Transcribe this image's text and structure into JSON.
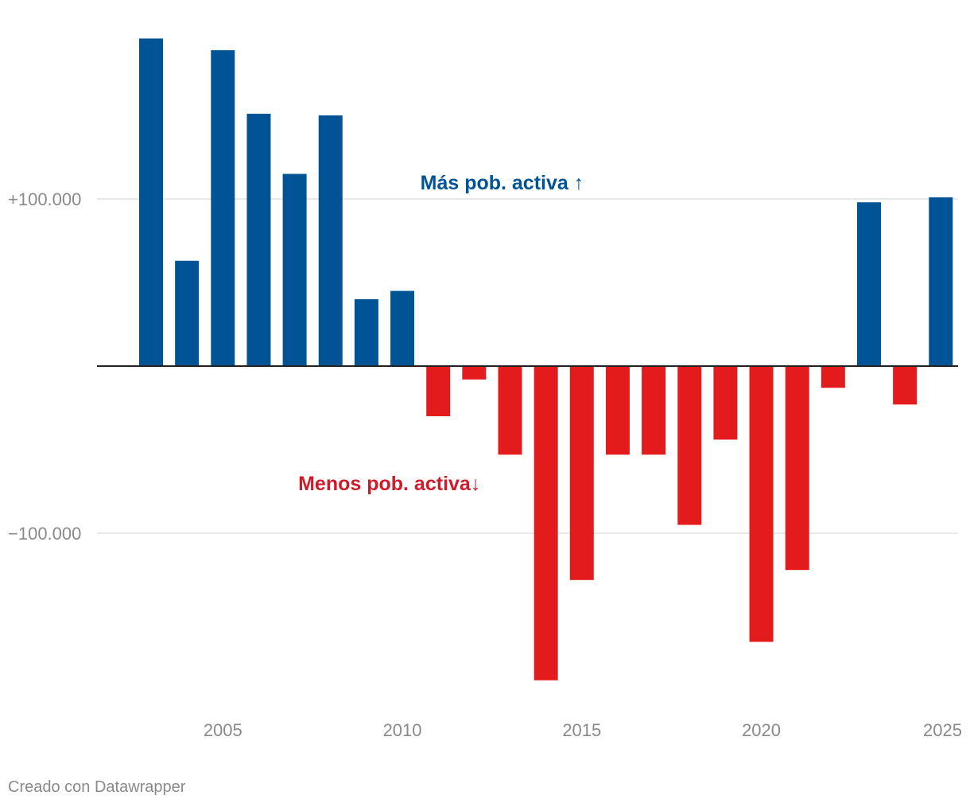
{
  "chart_data": {
    "type": "bar",
    "title": "",
    "xlabel": "",
    "ylabel": "",
    "x": [
      2003,
      2004,
      2005,
      2006,
      2007,
      2008,
      2009,
      2010,
      2011,
      2012,
      2013,
      2014,
      2015,
      2016,
      2017,
      2018,
      2019,
      2020,
      2021,
      2022,
      2023,
      2024,
      2025
    ],
    "values": [
      196000,
      63000,
      189000,
      151000,
      115000,
      150000,
      40000,
      45000,
      -30000,
      -8000,
      -53000,
      -188000,
      -128000,
      -53000,
      -53000,
      -95000,
      -44000,
      -165000,
      -122000,
      -13000,
      98000,
      -23000,
      101000
    ],
    "ylim": [
      -200000,
      200000
    ],
    "y_ticks": [
      {
        "value": 100000,
        "label": "+100.000"
      },
      {
        "value": -100000,
        "label": "−100.000"
      }
    ],
    "x_ticks": [
      2005,
      2010,
      2015,
      2020,
      2025
    ],
    "positive_color": "#005496",
    "negative_color": "#e31b1c",
    "annotations": [
      {
        "text": "Más pob. activa ↑",
        "color": "#005496",
        "anchor_x": 2010.5,
        "anchor_y": 110000
      },
      {
        "text": "Menos pob. activa↓",
        "color": "#cf1b2a",
        "anchor_x": 2007.1,
        "anchor_y": -70000
      }
    ]
  },
  "footer": {
    "credit": "Creado con Datawrapper"
  }
}
